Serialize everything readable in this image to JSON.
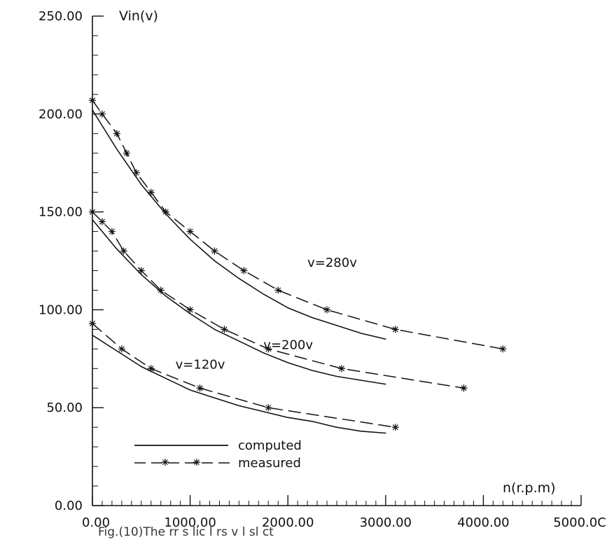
{
  "chart_data": {
    "type": "line",
    "caption": "Fig.(10)The rr s lic l rs v l sl ct",
    "xlabel": "n(r.p.m)",
    "ylabel": "Vin(v)",
    "xlim": [
      0,
      5000
    ],
    "ylim": [
      0,
      250
    ],
    "grid": false,
    "x_ticks": [
      0,
      1000,
      2000,
      3000,
      4000,
      5000
    ],
    "y_ticks": [
      0,
      50,
      100,
      150,
      200,
      250
    ],
    "x_tick_labels": [
      "0.00",
      "1000.00",
      "2000.00",
      "3000.00",
      "4000.00",
      "5000.0C"
    ],
    "y_tick_labels": [
      "0.00",
      "50.00",
      "100.00",
      "150.00",
      "200.00",
      "250.00"
    ],
    "legend": {
      "position": "bottom-left",
      "computed": "computed",
      "measured": "measured"
    },
    "series_labels": [
      {
        "text": "v=280v",
        "x": 2200,
        "y": 122
      },
      {
        "text": "v=200v",
        "x": 1750,
        "y": 80
      },
      {
        "text": "v=120v",
        "x": 850,
        "y": 70
      }
    ],
    "series": [
      {
        "group": "v=280v",
        "kind": "computed",
        "x": [
          0,
          250,
          500,
          750,
          1000,
          1250,
          1500,
          1750,
          2000,
          2250,
          2500,
          2750,
          3000
        ],
        "y": [
          202,
          182,
          164,
          149,
          136,
          125,
          116,
          108,
          101,
          96,
          92,
          88,
          85
        ]
      },
      {
        "group": "v=280v",
        "kind": "measured",
        "x": [
          0,
          100,
          250,
          350,
          450,
          600,
          750,
          1000,
          1250,
          1550,
          1900,
          2400,
          3100,
          4200
        ],
        "y": [
          207,
          200,
          190,
          180,
          170,
          160,
          150,
          140,
          130,
          120,
          110,
          100,
          90,
          80
        ]
      },
      {
        "group": "v=200v",
        "kind": "computed",
        "x": [
          0,
          250,
          500,
          750,
          1000,
          1250,
          1500,
          1750,
          2000,
          2250,
          2500,
          2750,
          3000
        ],
        "y": [
          146,
          131,
          118,
          107,
          98,
          90,
          84,
          78,
          73,
          69,
          66,
          64,
          62
        ]
      },
      {
        "group": "v=200v",
        "kind": "measured",
        "x": [
          0,
          100,
          200,
          320,
          500,
          700,
          1000,
          1350,
          1800,
          2550,
          3800
        ],
        "y": [
          150,
          145,
          140,
          130,
          120,
          110,
          100,
          90,
          80,
          70,
          60
        ]
      },
      {
        "group": "v=120v",
        "kind": "computed",
        "x": [
          0,
          250,
          500,
          750,
          1000,
          1250,
          1500,
          1750,
          2000,
          2250,
          2500,
          2750,
          3000
        ],
        "y": [
          87,
          79,
          71,
          65,
          59,
          55,
          51,
          48,
          45,
          43,
          40,
          38,
          37
        ]
      },
      {
        "group": "v=120v",
        "kind": "measured",
        "x": [
          0,
          300,
          600,
          1100,
          1800,
          3100
        ],
        "y": [
          93,
          80,
          70,
          60,
          50,
          40
        ]
      }
    ]
  }
}
